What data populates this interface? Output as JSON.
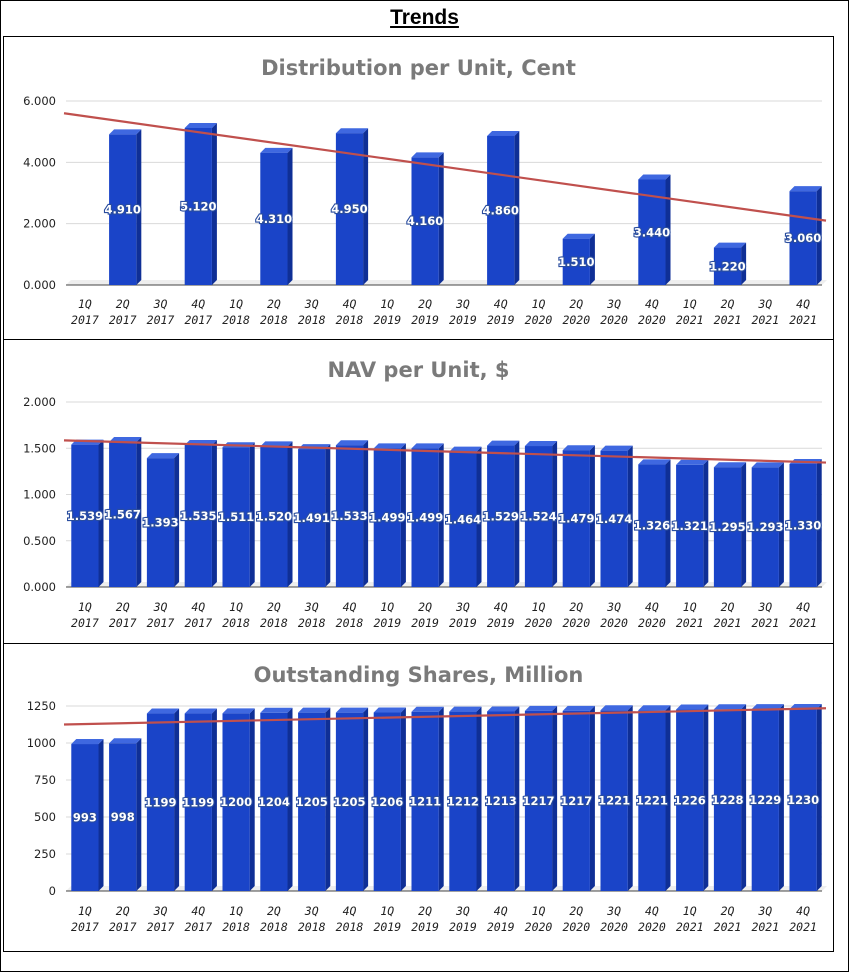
{
  "page_title": "Trends",
  "colors": {
    "bar_front": "#1a44c8",
    "bar_top": "#3f68e0",
    "bar_side": "#0f2f96",
    "trendline": "#c0504d",
    "gridline": "#d9d9d9",
    "title_gray": "#7a7a7a"
  },
  "chart_data": [
    {
      "type": "bar",
      "title": "Distribution per Unit, Cent",
      "categories": [
        [
          "1Q",
          "2017"
        ],
        [
          "2Q",
          "2017"
        ],
        [
          "3Q",
          "2017"
        ],
        [
          "4Q",
          "2017"
        ],
        [
          "1Q",
          "2018"
        ],
        [
          "2Q",
          "2018"
        ],
        [
          "3Q",
          "2018"
        ],
        [
          "4Q",
          "2018"
        ],
        [
          "1Q",
          "2019"
        ],
        [
          "2Q",
          "2019"
        ],
        [
          "3Q",
          "2019"
        ],
        [
          "4Q",
          "2019"
        ],
        [
          "1Q",
          "2020"
        ],
        [
          "2Q",
          "2020"
        ],
        [
          "3Q",
          "2020"
        ],
        [
          "4Q",
          "2020"
        ],
        [
          "1Q",
          "2021"
        ],
        [
          "2Q",
          "2021"
        ],
        [
          "3Q",
          "2021"
        ],
        [
          "4Q",
          "2021"
        ]
      ],
      "values": [
        null,
        4.91,
        null,
        5.12,
        null,
        4.31,
        null,
        4.95,
        null,
        4.16,
        null,
        4.86,
        null,
        1.51,
        null,
        3.44,
        null,
        1.22,
        null,
        3.06
      ],
      "data_labels": [
        "",
        "4.910",
        "",
        "5.120",
        "",
        "4.310",
        "",
        "4.950",
        "",
        "4.160",
        "",
        "4.860",
        "",
        "1.510",
        "",
        "3.440",
        "",
        "1.220",
        "",
        "3.060"
      ],
      "yticks": [
        "0.000",
        "2.000",
        "4.000",
        "6.000"
      ],
      "ylim": [
        0,
        6
      ],
      "trendline": {
        "start": 5.6,
        "end": 2.1
      },
      "xlabel": "",
      "ylabel": ""
    },
    {
      "type": "bar",
      "title": "NAV per Unit, $",
      "categories": [
        [
          "1Q",
          "2017"
        ],
        [
          "2Q",
          "2017"
        ],
        [
          "3Q",
          "2017"
        ],
        [
          "4Q",
          "2017"
        ],
        [
          "1Q",
          "2018"
        ],
        [
          "2Q",
          "2018"
        ],
        [
          "3Q",
          "2018"
        ],
        [
          "4Q",
          "2018"
        ],
        [
          "1Q",
          "2019"
        ],
        [
          "2Q",
          "2019"
        ],
        [
          "3Q",
          "2019"
        ],
        [
          "4Q",
          "2019"
        ],
        [
          "1Q",
          "2020"
        ],
        [
          "2Q",
          "2020"
        ],
        [
          "3Q",
          "2020"
        ],
        [
          "4Q",
          "2020"
        ],
        [
          "1Q",
          "2021"
        ],
        [
          "2Q",
          "2021"
        ],
        [
          "3Q",
          "2021"
        ],
        [
          "4Q",
          "2021"
        ]
      ],
      "values": [
        1.539,
        1.567,
        1.393,
        1.535,
        1.511,
        1.52,
        1.491,
        1.533,
        1.499,
        1.499,
        1.464,
        1.529,
        1.524,
        1.479,
        1.474,
        1.326,
        1.321,
        1.295,
        1.293,
        1.33
      ],
      "data_labels": [
        "1.539",
        "1.567",
        "1.393",
        "1.535",
        "1.511",
        "1.520",
        "1.491",
        "1.533",
        "1.499",
        "1.499",
        "1.464",
        "1.529",
        "1.524",
        "1.479",
        "1.474",
        "1.326",
        "1.321",
        "1.295",
        "1.293",
        "1.330"
      ],
      "yticks": [
        "0.000",
        "0.500",
        "1.000",
        "1.500",
        "2.000"
      ],
      "ylim": [
        0,
        2
      ],
      "trendline": {
        "start": 1.585,
        "end": 1.345
      },
      "xlabel": "",
      "ylabel": ""
    },
    {
      "type": "bar",
      "title": "Outstanding Shares, Million",
      "categories": [
        [
          "1Q",
          "2017"
        ],
        [
          "2Q",
          "2017"
        ],
        [
          "3Q",
          "2017"
        ],
        [
          "4Q",
          "2017"
        ],
        [
          "1Q",
          "2018"
        ],
        [
          "2Q",
          "2018"
        ],
        [
          "3Q",
          "2018"
        ],
        [
          "4Q",
          "2018"
        ],
        [
          "1Q",
          "2019"
        ],
        [
          "2Q",
          "2019"
        ],
        [
          "3Q",
          "2019"
        ],
        [
          "4Q",
          "2019"
        ],
        [
          "1Q",
          "2020"
        ],
        [
          "2Q",
          "2020"
        ],
        [
          "3Q",
          "2020"
        ],
        [
          "4Q",
          "2020"
        ],
        [
          "1Q",
          "2021"
        ],
        [
          "2Q",
          "2021"
        ],
        [
          "3Q",
          "2021"
        ],
        [
          "4Q",
          "2021"
        ]
      ],
      "values": [
        993,
        998,
        1199,
        1199,
        1200,
        1204,
        1205,
        1205,
        1206,
        1211,
        1212,
        1213,
        1217,
        1217,
        1221,
        1221,
        1226,
        1228,
        1229,
        1230
      ],
      "data_labels": [
        "993",
        "998",
        "1199",
        "1199",
        "1200",
        "1204",
        "1205",
        "1205",
        "1206",
        "1211",
        "1212",
        "1213",
        "1217",
        "1217",
        "1221",
        "1221",
        "1226",
        "1228",
        "1229",
        "1230"
      ],
      "yticks": [
        "0",
        "250",
        "500",
        "750",
        "1000",
        "1250"
      ],
      "ylim": [
        0,
        1250
      ],
      "trendline": {
        "start": 1125,
        "end": 1235
      },
      "xlabel": "",
      "ylabel": ""
    }
  ]
}
